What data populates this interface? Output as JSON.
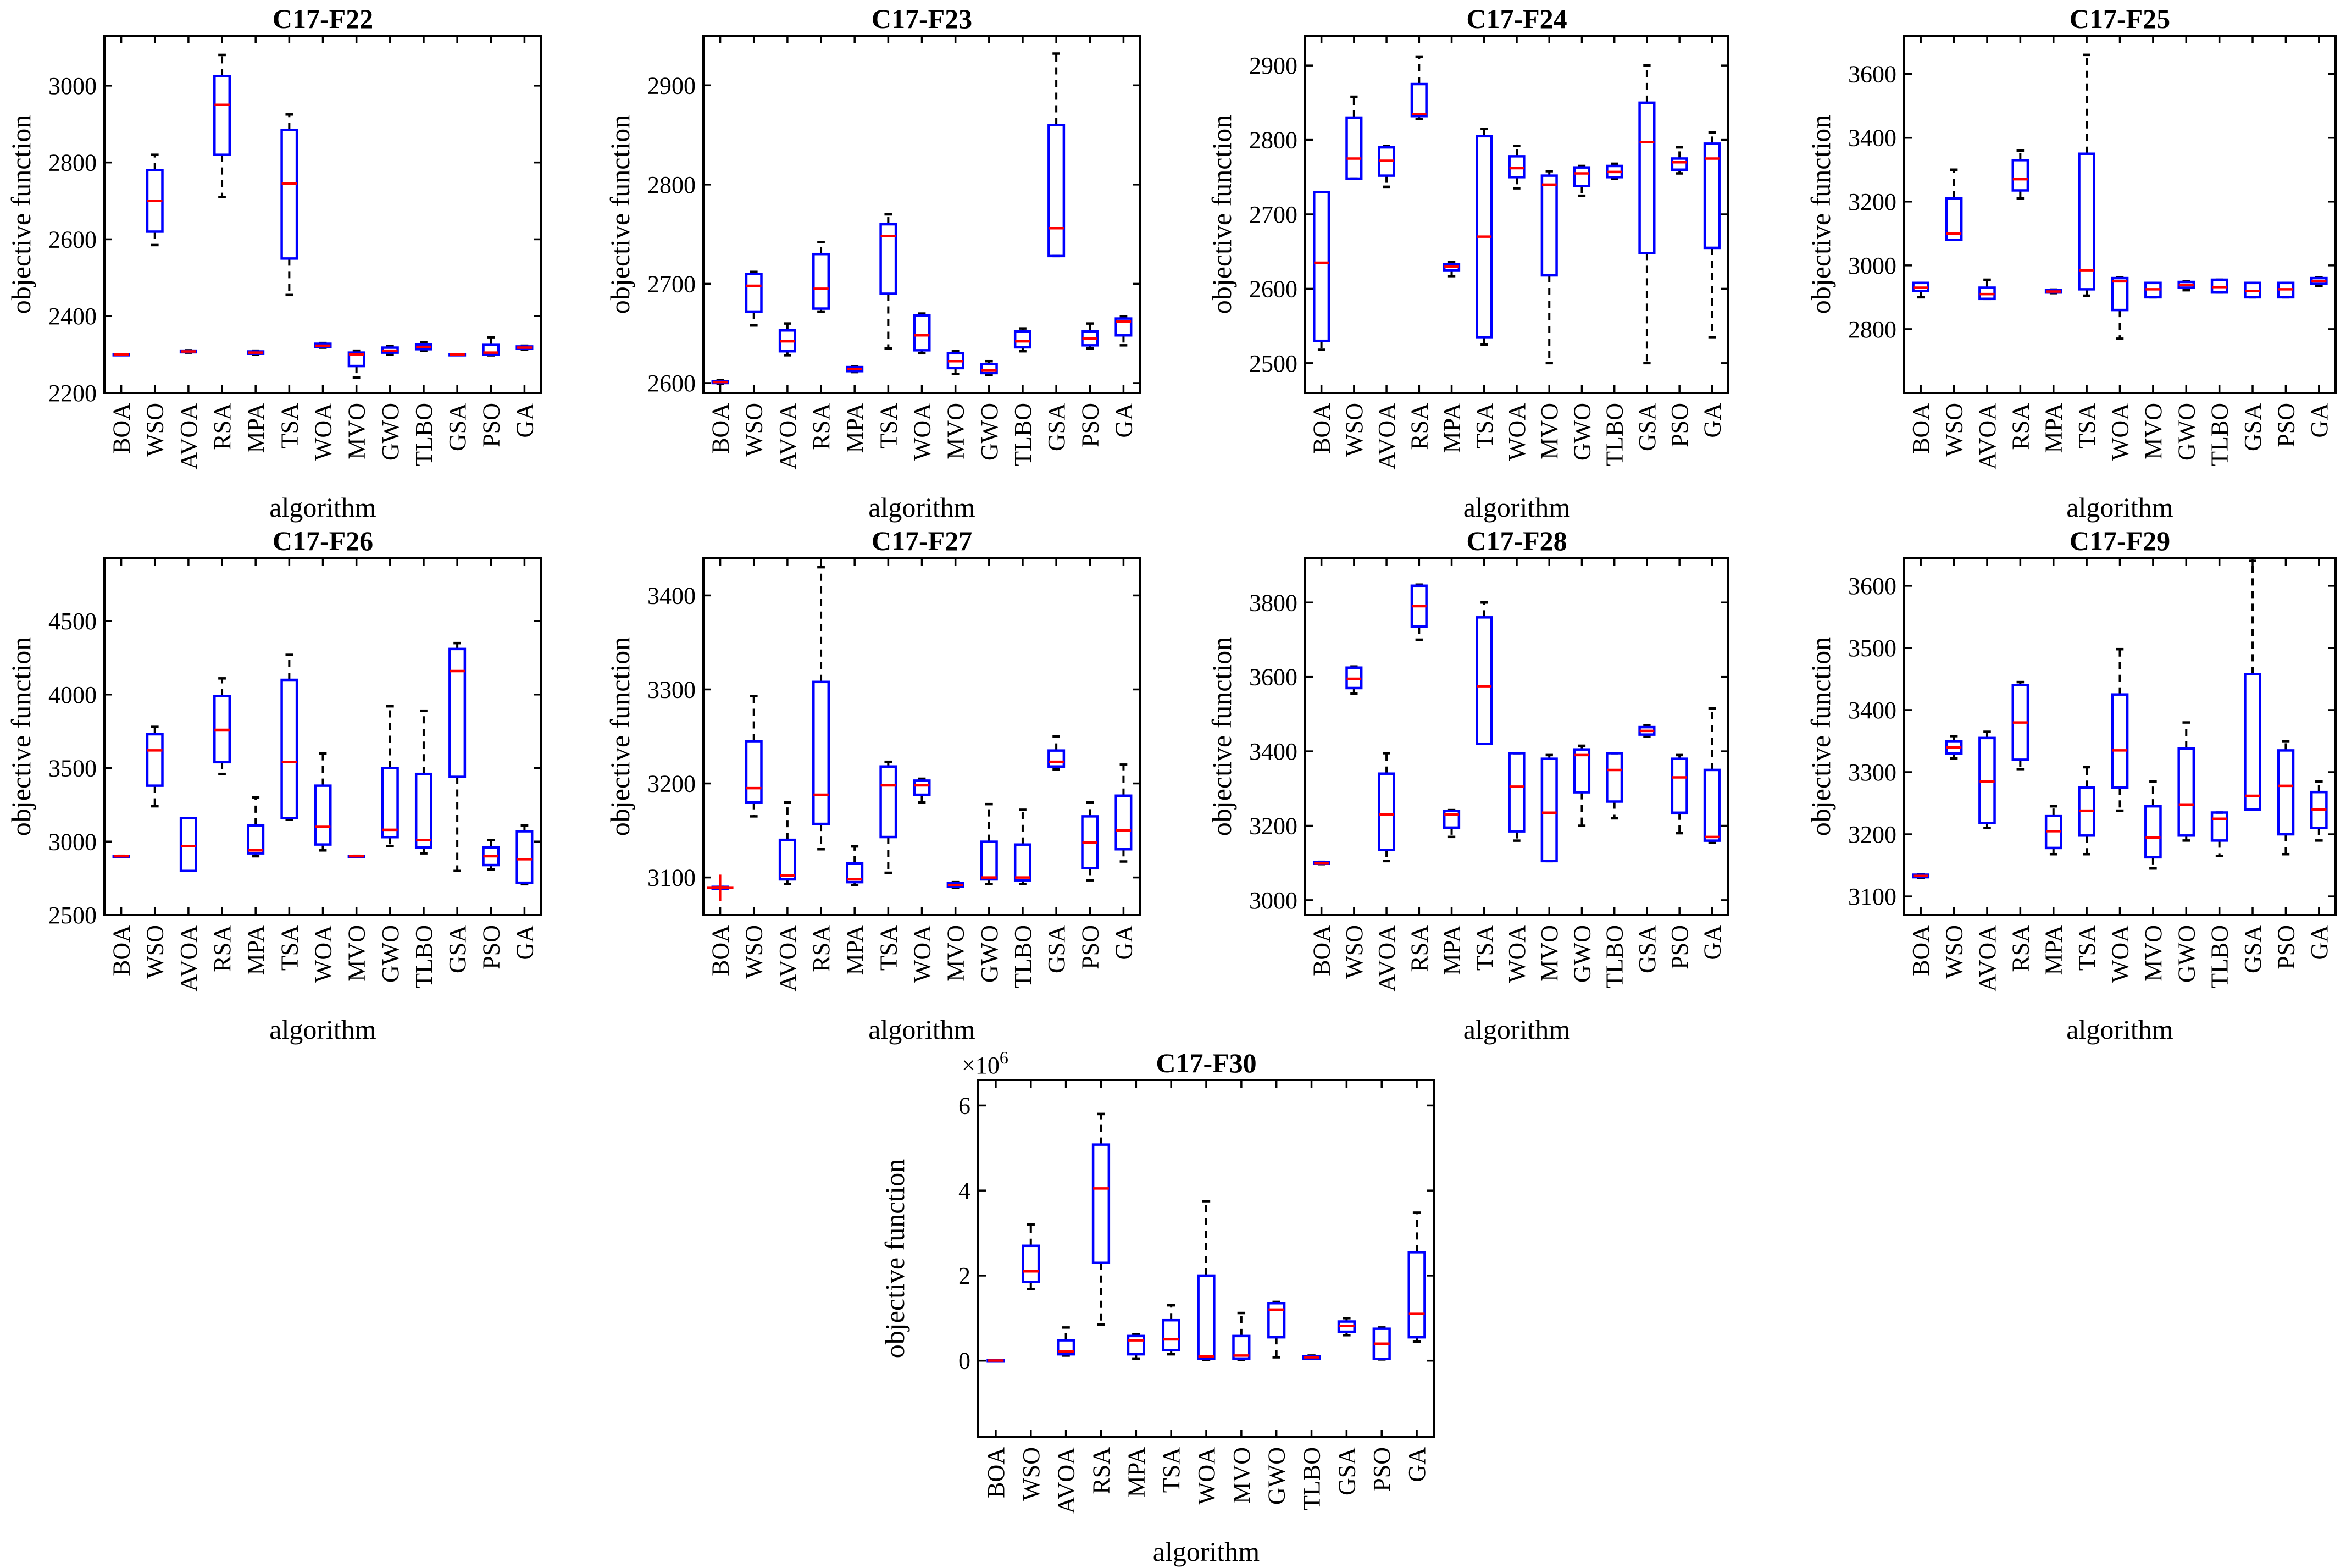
{
  "figure": {
    "algorithms": [
      "BOA",
      "WSO",
      "AVOA",
      "RSA",
      "MPA",
      "TSA",
      "WOA",
      "MVO",
      "GWO",
      "TLBO",
      "GSA",
      "PSO",
      "GA"
    ],
    "colors": {
      "box": "#0000ff",
      "median": "#ff0000",
      "whisker": "#000000",
      "outlier": "#ff0000"
    }
  },
  "chart_data": [
    {
      "type": "boxplot",
      "title": "C17-F22",
      "xlabel": "algorithm",
      "ylabel": "objective function",
      "ylim": [
        2200,
        3130
      ],
      "yticks": [
        2200,
        2400,
        2600,
        2800,
        3000
      ],
      "boxes": [
        {
          "q1": 2299,
          "med": 2300,
          "q3": 2301,
          "lo": 2299,
          "hi": 2301
        },
        {
          "q1": 2620,
          "med": 2700,
          "q3": 2780,
          "lo": 2585,
          "hi": 2820
        },
        {
          "q1": 2306,
          "med": 2308,
          "q3": 2310,
          "lo": 2305,
          "hi": 2311
        },
        {
          "q1": 2820,
          "med": 2950,
          "q3": 3025,
          "lo": 2710,
          "hi": 3080
        },
        {
          "q1": 2302,
          "med": 2305,
          "q3": 2308,
          "lo": 2300,
          "hi": 2310
        },
        {
          "q1": 2550,
          "med": 2745,
          "q3": 2885,
          "lo": 2455,
          "hi": 2925
        },
        {
          "q1": 2320,
          "med": 2323,
          "q3": 2328,
          "lo": 2318,
          "hi": 2330
        },
        {
          "q1": 2270,
          "med": 2300,
          "q3": 2305,
          "lo": 2240,
          "hi": 2310
        },
        {
          "q1": 2305,
          "med": 2310,
          "q3": 2318,
          "lo": 2300,
          "hi": 2322
        },
        {
          "q1": 2314,
          "med": 2320,
          "q3": 2326,
          "lo": 2310,
          "hi": 2332
        },
        {
          "q1": 2299,
          "med": 2300,
          "q3": 2301,
          "lo": 2299,
          "hi": 2301
        },
        {
          "q1": 2300,
          "med": 2305,
          "q3": 2325,
          "lo": 2298,
          "hi": 2345
        },
        {
          "q1": 2315,
          "med": 2318,
          "q3": 2321,
          "lo": 2313,
          "hi": 2323
        }
      ]
    },
    {
      "type": "boxplot",
      "title": "C17-F23",
      "xlabel": "algorithm",
      "ylabel": "objective function",
      "ylim": [
        2590,
        2950
      ],
      "yticks": [
        2600,
        2700,
        2800,
        2900
      ],
      "boxes": [
        {
          "q1": 2600,
          "med": 2601,
          "q3": 2602,
          "lo": 2599,
          "hi": 2603
        },
        {
          "q1": 2672,
          "med": 2698,
          "q3": 2710,
          "lo": 2658,
          "hi": 2712
        },
        {
          "q1": 2632,
          "med": 2642,
          "q3": 2653,
          "lo": 2628,
          "hi": 2660
        },
        {
          "q1": 2675,
          "med": 2695,
          "q3": 2730,
          "lo": 2672,
          "hi": 2742
        },
        {
          "q1": 2612,
          "med": 2614,
          "q3": 2616,
          "lo": 2611,
          "hi": 2617
        },
        {
          "q1": 2690,
          "med": 2748,
          "q3": 2760,
          "lo": 2635,
          "hi": 2770
        },
        {
          "q1": 2633,
          "med": 2648,
          "q3": 2668,
          "lo": 2630,
          "hi": 2670
        },
        {
          "q1": 2615,
          "med": 2622,
          "q3": 2630,
          "lo": 2609,
          "hi": 2632
        },
        {
          "q1": 2610,
          "med": 2613,
          "q3": 2619,
          "lo": 2608,
          "hi": 2622
        },
        {
          "q1": 2636,
          "med": 2642,
          "q3": 2652,
          "lo": 2632,
          "hi": 2655
        },
        {
          "q1": 2728,
          "med": 2756,
          "q3": 2860,
          "lo": 2728,
          "hi": 2932
        },
        {
          "q1": 2638,
          "med": 2645,
          "q3": 2652,
          "lo": 2635,
          "hi": 2660
        },
        {
          "q1": 2648,
          "med": 2662,
          "q3": 2665,
          "lo": 2638,
          "hi": 2667
        }
      ]
    },
    {
      "type": "boxplot",
      "title": "C17-F24",
      "xlabel": "algorithm",
      "ylabel": "objective function",
      "ylim": [
        2460,
        2940
      ],
      "yticks": [
        2500,
        2600,
        2700,
        2800,
        2900
      ],
      "boxes": [
        {
          "q1": 2530,
          "med": 2635,
          "q3": 2730,
          "lo": 2518,
          "hi": 2730
        },
        {
          "q1": 2748,
          "med": 2775,
          "q3": 2830,
          "lo": 2748,
          "hi": 2858
        },
        {
          "q1": 2752,
          "med": 2772,
          "q3": 2790,
          "lo": 2737,
          "hi": 2792
        },
        {
          "q1": 2832,
          "med": 2835,
          "q3": 2875,
          "lo": 2828,
          "hi": 2912
        },
        {
          "q1": 2625,
          "med": 2630,
          "q3": 2633,
          "lo": 2617,
          "hi": 2636
        },
        {
          "q1": 2535,
          "med": 2670,
          "q3": 2805,
          "lo": 2525,
          "hi": 2815
        },
        {
          "q1": 2750,
          "med": 2762,
          "q3": 2778,
          "lo": 2735,
          "hi": 2792
        },
        {
          "q1": 2618,
          "med": 2740,
          "q3": 2752,
          "lo": 2500,
          "hi": 2758
        },
        {
          "q1": 2738,
          "med": 2755,
          "q3": 2763,
          "lo": 2725,
          "hi": 2765
        },
        {
          "q1": 2750,
          "med": 2757,
          "q3": 2765,
          "lo": 2748,
          "hi": 2768
        },
        {
          "q1": 2648,
          "med": 2797,
          "q3": 2850,
          "lo": 2500,
          "hi": 2900
        },
        {
          "q1": 2760,
          "med": 2770,
          "q3": 2775,
          "lo": 2755,
          "hi": 2790
        },
        {
          "q1": 2655,
          "med": 2775,
          "q3": 2795,
          "lo": 2535,
          "hi": 2810
        }
      ]
    },
    {
      "type": "boxplot",
      "title": "C17-F25",
      "xlabel": "algorithm",
      "ylabel": "objective function",
      "ylim": [
        2600,
        3720
      ],
      "yticks": [
        2800,
        3000,
        3200,
        3400,
        3600
      ],
      "boxes": [
        {
          "q1": 2920,
          "med": 2930,
          "q3": 2945,
          "lo": 2900,
          "hi": 2945
        },
        {
          "q1": 3080,
          "med": 3100,
          "q3": 3210,
          "lo": 3080,
          "hi": 3300
        },
        {
          "q1": 2895,
          "med": 2910,
          "q3": 2930,
          "lo": 2895,
          "hi": 2955
        },
        {
          "q1": 3235,
          "med": 3270,
          "q3": 3330,
          "lo": 3210,
          "hi": 3360
        },
        {
          "q1": 2915,
          "med": 2918,
          "q3": 2922,
          "lo": 2913,
          "hi": 2924
        },
        {
          "q1": 2925,
          "med": 2985,
          "q3": 3350,
          "lo": 2905,
          "hi": 3660
        },
        {
          "q1": 2860,
          "med": 2950,
          "q3": 2960,
          "lo": 2770,
          "hi": 2962
        },
        {
          "q1": 2900,
          "med": 2925,
          "q3": 2945,
          "lo": 2900,
          "hi": 2945
        },
        {
          "q1": 2930,
          "med": 2938,
          "q3": 2948,
          "lo": 2922,
          "hi": 2950
        },
        {
          "q1": 2915,
          "med": 2932,
          "q3": 2955,
          "lo": 2915,
          "hi": 2955
        },
        {
          "q1": 2900,
          "med": 2920,
          "q3": 2945,
          "lo": 2900,
          "hi": 2945
        },
        {
          "q1": 2900,
          "med": 2925,
          "q3": 2945,
          "lo": 2900,
          "hi": 2945
        },
        {
          "q1": 2942,
          "med": 2950,
          "q3": 2960,
          "lo": 2935,
          "hi": 2962
        }
      ]
    },
    {
      "type": "boxplot",
      "title": "C17-F26",
      "xlabel": "algorithm",
      "ylabel": "objective function",
      "ylim": [
        2500,
        4930
      ],
      "yticks": [
        2500,
        3000,
        3500,
        4000,
        4500
      ],
      "boxes": [
        {
          "q1": 2898,
          "med": 2900,
          "q3": 2902,
          "lo": 2897,
          "hi": 2903
        },
        {
          "q1": 3380,
          "med": 3620,
          "q3": 3730,
          "lo": 3240,
          "hi": 3780
        },
        {
          "q1": 2800,
          "med": 2970,
          "q3": 3160,
          "lo": 2800,
          "hi": 3160
        },
        {
          "q1": 3540,
          "med": 3760,
          "q3": 3990,
          "lo": 3460,
          "hi": 4110
        },
        {
          "q1": 2920,
          "med": 2940,
          "q3": 3110,
          "lo": 2900,
          "hi": 3300
        },
        {
          "q1": 3160,
          "med": 3540,
          "q3": 4100,
          "lo": 3150,
          "hi": 4270
        },
        {
          "q1": 2980,
          "med": 3100,
          "q3": 3380,
          "lo": 2940,
          "hi": 3600
        },
        {
          "q1": 2898,
          "med": 2900,
          "q3": 2902,
          "lo": 2897,
          "hi": 2903
        },
        {
          "q1": 3030,
          "med": 3080,
          "q3": 3500,
          "lo": 2970,
          "hi": 3920
        },
        {
          "q1": 2960,
          "med": 3010,
          "q3": 3460,
          "lo": 2920,
          "hi": 3890
        },
        {
          "q1": 3440,
          "med": 4160,
          "q3": 4310,
          "lo": 2800,
          "hi": 4350
        },
        {
          "q1": 2840,
          "med": 2900,
          "q3": 2960,
          "lo": 2810,
          "hi": 3010
        },
        {
          "q1": 2720,
          "med": 2880,
          "q3": 3070,
          "lo": 2710,
          "hi": 3110
        }
      ]
    },
    {
      "type": "boxplot",
      "title": "C17-F27",
      "xlabel": "algorithm",
      "ylabel": "objective function",
      "ylim": [
        3060,
        3440
      ],
      "yticks": [
        3100,
        3200,
        3300,
        3400
      ],
      "boxes": [
        {
          "q1": 3088,
          "med": 3089,
          "q3": 3090,
          "lo": 3088,
          "hi": 3090,
          "outlier": 3089
        },
        {
          "q1": 3180,
          "med": 3195,
          "q3": 3245,
          "lo": 3165,
          "hi": 3293
        },
        {
          "q1": 3098,
          "med": 3102,
          "q3": 3140,
          "lo": 3093,
          "hi": 3180
        },
        {
          "q1": 3157,
          "med": 3188,
          "q3": 3308,
          "lo": 3130,
          "hi": 3430
        },
        {
          "q1": 3095,
          "med": 3098,
          "q3": 3115,
          "lo": 3092,
          "hi": 3133
        },
        {
          "q1": 3143,
          "med": 3198,
          "q3": 3218,
          "lo": 3105,
          "hi": 3223
        },
        {
          "q1": 3188,
          "med": 3198,
          "q3": 3203,
          "lo": 3180,
          "hi": 3205
        },
        {
          "q1": 3090,
          "med": 3092,
          "q3": 3094,
          "lo": 3089,
          "hi": 3095
        },
        {
          "q1": 3098,
          "med": 3100,
          "q3": 3138,
          "lo": 3093,
          "hi": 3178
        },
        {
          "q1": 3097,
          "med": 3100,
          "q3": 3135,
          "lo": 3093,
          "hi": 3172
        },
        {
          "q1": 3218,
          "med": 3223,
          "q3": 3235,
          "lo": 3215,
          "hi": 3250
        },
        {
          "q1": 3110,
          "med": 3137,
          "q3": 3165,
          "lo": 3097,
          "hi": 3180
        },
        {
          "q1": 3130,
          "med": 3150,
          "q3": 3187,
          "lo": 3117,
          "hi": 3220
        }
      ]
    },
    {
      "type": "boxplot",
      "title": "C17-F28",
      "xlabel": "algorithm",
      "ylabel": "objective function",
      "ylim": [
        2960,
        3920
      ],
      "yticks": [
        3000,
        3200,
        3400,
        3600,
        3800
      ],
      "boxes": [
        {
          "q1": 3098,
          "med": 3100,
          "q3": 3102,
          "lo": 3097,
          "hi": 3103
        },
        {
          "q1": 3570,
          "med": 3595,
          "q3": 3625,
          "lo": 3555,
          "hi": 3628
        },
        {
          "q1": 3135,
          "med": 3230,
          "q3": 3340,
          "lo": 3105,
          "hi": 3395
        },
        {
          "q1": 3735,
          "med": 3790,
          "q3": 3845,
          "lo": 3700,
          "hi": 3848
        },
        {
          "q1": 3195,
          "med": 3230,
          "q3": 3240,
          "lo": 3170,
          "hi": 3242
        },
        {
          "q1": 3420,
          "med": 3575,
          "q3": 3760,
          "lo": 3420,
          "hi": 3800
        },
        {
          "q1": 3185,
          "med": 3305,
          "q3": 3395,
          "lo": 3160,
          "hi": 3395
        },
        {
          "q1": 3105,
          "med": 3235,
          "q3": 3380,
          "lo": 3105,
          "hi": 3390
        },
        {
          "q1": 3290,
          "med": 3390,
          "q3": 3405,
          "lo": 3200,
          "hi": 3415
        },
        {
          "q1": 3265,
          "med": 3350,
          "q3": 3395,
          "lo": 3220,
          "hi": 3395
        },
        {
          "q1": 3445,
          "med": 3455,
          "q3": 3465,
          "lo": 3440,
          "hi": 3470
        },
        {
          "q1": 3235,
          "med": 3330,
          "q3": 3380,
          "lo": 3180,
          "hi": 3390
        },
        {
          "q1": 3160,
          "med": 3170,
          "q3": 3350,
          "lo": 3155,
          "hi": 3515
        }
      ]
    },
    {
      "type": "boxplot",
      "title": "C17-F29",
      "xlabel": "algorithm",
      "ylabel": "objective function",
      "ylim": [
        3070,
        3645
      ],
      "yticks": [
        3100,
        3200,
        3300,
        3400,
        3500,
        3600
      ],
      "boxes": [
        {
          "q1": 3131,
          "med": 3133,
          "q3": 3135,
          "lo": 3130,
          "hi": 3136
        },
        {
          "q1": 3330,
          "med": 3340,
          "q3": 3350,
          "lo": 3322,
          "hi": 3358
        },
        {
          "q1": 3218,
          "med": 3285,
          "q3": 3355,
          "lo": 3210,
          "hi": 3365
        },
        {
          "q1": 3320,
          "med": 3380,
          "q3": 3440,
          "lo": 3305,
          "hi": 3445
        },
        {
          "q1": 3178,
          "med": 3205,
          "q3": 3230,
          "lo": 3168,
          "hi": 3245
        },
        {
          "q1": 3198,
          "med": 3238,
          "q3": 3275,
          "lo": 3168,
          "hi": 3308
        },
        {
          "q1": 3275,
          "med": 3335,
          "q3": 3425,
          "lo": 3238,
          "hi": 3498
        },
        {
          "q1": 3163,
          "med": 3195,
          "q3": 3245,
          "lo": 3145,
          "hi": 3285
        },
        {
          "q1": 3198,
          "med": 3248,
          "q3": 3338,
          "lo": 3190,
          "hi": 3380
        },
        {
          "q1": 3190,
          "med": 3225,
          "q3": 3235,
          "lo": 3165,
          "hi": 3235
        },
        {
          "q1": 3240,
          "med": 3262,
          "q3": 3458,
          "lo": 3240,
          "hi": 3640
        },
        {
          "q1": 3200,
          "med": 3278,
          "q3": 3335,
          "lo": 3168,
          "hi": 3350
        },
        {
          "q1": 3210,
          "med": 3240,
          "q3": 3268,
          "lo": 3190,
          "hi": 3285
        }
      ]
    },
    {
      "type": "boxplot",
      "title": "C17-F30",
      "xlabel": "algorithm",
      "ylabel": "objective function",
      "yscale_label": "×10",
      "yscale_exp": "6",
      "ylim": [
        -1.8,
        6.6
      ],
      "yticks": [
        0,
        2,
        4,
        6
      ],
      "boxes": [
        {
          "q1": 0,
          "med": 0.003,
          "q3": 0.006,
          "lo": 0,
          "hi": 0.006
        },
        {
          "q1": 1.85,
          "med": 2.1,
          "q3": 2.7,
          "lo": 1.68,
          "hi": 3.2
        },
        {
          "q1": 0.15,
          "med": 0.22,
          "q3": 0.48,
          "lo": 0.12,
          "hi": 0.78
        },
        {
          "q1": 2.3,
          "med": 4.05,
          "q3": 5.08,
          "lo": 0.85,
          "hi": 5.8
        },
        {
          "q1": 0.15,
          "med": 0.48,
          "q3": 0.58,
          "lo": 0.05,
          "hi": 0.62
        },
        {
          "q1": 0.25,
          "med": 0.5,
          "q3": 0.95,
          "lo": 0.15,
          "hi": 1.3
        },
        {
          "q1": 0.05,
          "med": 0.1,
          "q3": 2.0,
          "lo": 0.02,
          "hi": 3.75
        },
        {
          "q1": 0.05,
          "med": 0.12,
          "q3": 0.58,
          "lo": 0.02,
          "hi": 1.12
        },
        {
          "q1": 0.55,
          "med": 1.2,
          "q3": 1.35,
          "lo": 0.08,
          "hi": 1.38
        },
        {
          "q1": 0.05,
          "med": 0.08,
          "q3": 0.1,
          "lo": 0.04,
          "hi": 0.12
        },
        {
          "q1": 0.68,
          "med": 0.82,
          "q3": 0.92,
          "lo": 0.6,
          "hi": 1.0
        },
        {
          "q1": 0.04,
          "med": 0.4,
          "q3": 0.75,
          "lo": 0.03,
          "hi": 0.78
        },
        {
          "q1": 0.55,
          "med": 1.1,
          "q3": 2.55,
          "lo": 0.45,
          "hi": 3.48
        }
      ]
    }
  ]
}
